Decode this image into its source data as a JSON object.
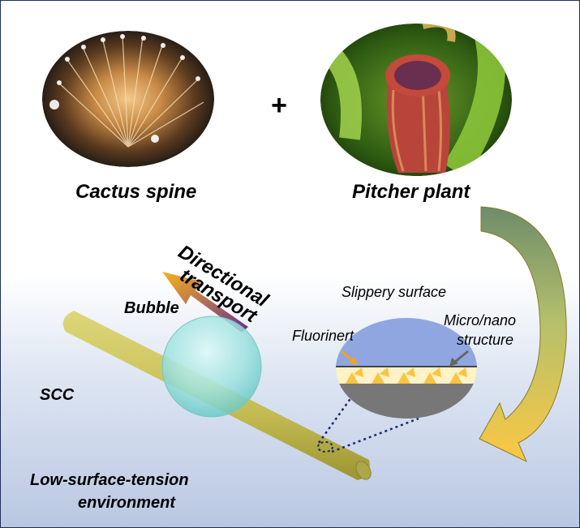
{
  "labels": {
    "cactus": "Cactus spine",
    "pitcher": "Pitcher plant",
    "plus": "+",
    "directional_line1": "Directional",
    "directional_line2": "transport",
    "bubble": "Bubble",
    "slippery": "Slippery surface",
    "fluorinert": "Fluorinert",
    "micro_line1": "Micro/nano",
    "micro_line2": "structure",
    "scc": "SCC",
    "env_line1": "Low-surface-tension",
    "env_line2": "environment"
  },
  "colors": {
    "border": "#1f2d5a",
    "cone": "#c9c25a",
    "bubble": "#9fe3e0",
    "arrow_start": "#f7b21b",
    "arrow_end": "#6a2d8f",
    "curved_arrow": "#f4c542",
    "slippery_top": "#8fa6e0",
    "fluid_layer": "#fff2c6",
    "substrate": "#777777",
    "dotted_line": "#1a2a6c"
  }
}
